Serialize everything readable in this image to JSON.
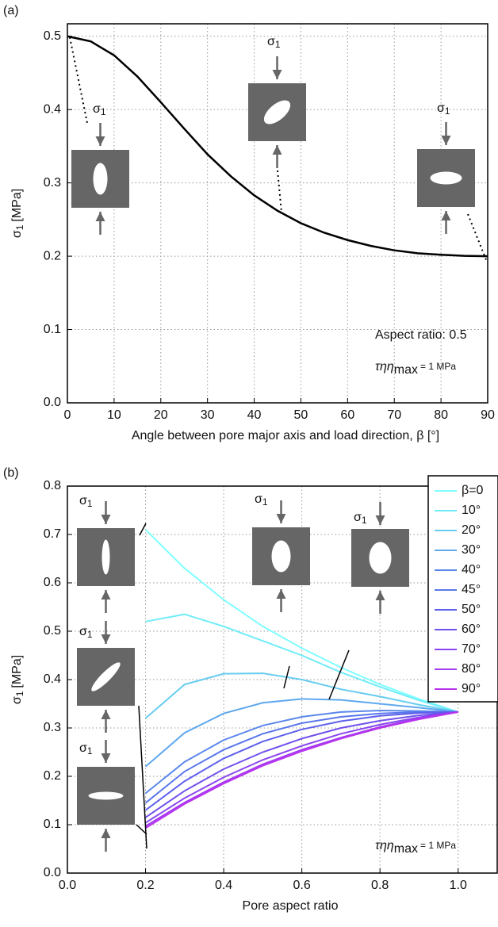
{
  "chart_data": [
    {
      "type": "line",
      "panel_label": "(a)",
      "xlabel": "Angle between pore major axis and load direction, β [°]",
      "ylabel": {
        "symbol": "σ",
        "sub": "1",
        "unit": "[MPa]"
      },
      "xlim": [
        0,
        90
      ],
      "ylim": [
        0,
        0.517
      ],
      "xticks": [
        0,
        10,
        20,
        30,
        40,
        50,
        60,
        70,
        80,
        90
      ],
      "yticks": [
        {
          "value": 0,
          "label": "0.0"
        },
        0.1,
        0.2,
        0.3,
        0.4,
        0.5
      ],
      "grid": true,
      "x": [
        0,
        5,
        10,
        15,
        20,
        25,
        30,
        35,
        40,
        45,
        50,
        55,
        60,
        65,
        70,
        75,
        80,
        85,
        90
      ],
      "values": [
        0.5,
        0.493,
        0.474,
        0.445,
        0.41,
        0.374,
        0.339,
        0.309,
        0.283,
        0.262,
        0.245,
        0.232,
        0.222,
        0.214,
        0.208,
        0.204,
        0.202,
        0.2005,
        0.2
      ],
      "color": "#000000",
      "inset_label": {
        "symbol": "σ",
        "sub": "1"
      },
      "annotations": [
        {
          "text": "Aspect ratio: 0.5"
        },
        {
          "text": "τηη",
          "sub": "max",
          "rest": "= 1 MPa"
        }
      ]
    },
    {
      "type": "line",
      "panel_label": "(b)",
      "xlabel": "Pore aspect ratio",
      "ylabel": {
        "symbol": "σ",
        "sub": "1",
        "unit": "[MPa]"
      },
      "xlim": [
        0,
        1.1
      ],
      "ylim": [
        0,
        0.8
      ],
      "xticks": [
        {
          "value": 0,
          "label": "0.0"
        },
        0.2,
        0.4,
        0.6,
        0.8,
        {
          "value": 1,
          "label": "1.0"
        }
      ],
      "yticks": [
        {
          "value": 0,
          "label": "0.0"
        },
        0.1,
        0.2,
        0.3,
        0.4,
        0.5,
        0.6,
        0.7,
        0.8
      ],
      "grid": true,
      "legend": "upper right",
      "x": [
        0.2,
        0.3,
        0.4,
        0.5,
        0.6,
        0.7,
        0.8,
        0.9,
        1.0
      ],
      "series": [
        {
          "name": "β=0",
          "color": "#7fffff",
          "values": [
            0.71,
            0.63,
            0.565,
            0.51,
            0.465,
            0.425,
            0.39,
            0.36,
            0.333
          ]
        },
        {
          "name": "10°",
          "color": "#70ecf8",
          "values": [
            0.52,
            0.535,
            0.51,
            0.48,
            0.45,
            0.415,
            0.385,
            0.357,
            0.333
          ]
        },
        {
          "name": "20°",
          "color": "#66ccf0",
          "values": [
            0.32,
            0.39,
            0.412,
            0.413,
            0.4,
            0.38,
            0.365,
            0.348,
            0.333
          ]
        },
        {
          "name": "30°",
          "color": "#5ea8ee",
          "values": [
            0.22,
            0.29,
            0.33,
            0.352,
            0.36,
            0.358,
            0.35,
            0.342,
            0.333
          ]
        },
        {
          "name": "40°",
          "color": "#5a88ec",
          "values": [
            0.165,
            0.23,
            0.275,
            0.305,
            0.323,
            0.333,
            0.336,
            0.335,
            0.333
          ]
        },
        {
          "name": "45°",
          "color": "#5a77ec",
          "values": [
            0.145,
            0.21,
            0.255,
            0.288,
            0.31,
            0.323,
            0.33,
            0.333,
            0.333
          ]
        },
        {
          "name": "50°",
          "color": "#5e60ec",
          "values": [
            0.13,
            0.19,
            0.237,
            0.272,
            0.297,
            0.314,
            0.325,
            0.331,
            0.333
          ]
        },
        {
          "name": "60°",
          "color": "#7050ec",
          "values": [
            0.115,
            0.17,
            0.215,
            0.25,
            0.278,
            0.3,
            0.315,
            0.326,
            0.333
          ]
        },
        {
          "name": "70°",
          "color": "#8a45ee",
          "values": [
            0.104,
            0.155,
            0.198,
            0.234,
            0.263,
            0.288,
            0.307,
            0.322,
            0.333
          ]
        },
        {
          "name": "80°",
          "color": "#a23cee",
          "values": [
            0.097,
            0.146,
            0.188,
            0.225,
            0.255,
            0.28,
            0.302,
            0.32,
            0.333
          ]
        },
        {
          "name": "90°",
          "color": "#b833ee",
          "values": [
            0.093,
            0.143,
            0.185,
            0.222,
            0.252,
            0.278,
            0.3,
            0.318,
            0.333
          ]
        }
      ],
      "inset_label": {
        "symbol": "σ",
        "sub": "1"
      },
      "annotations": [
        {
          "text": "τηη",
          "sub": "max",
          "rest": "= 1 MPa"
        }
      ]
    }
  ]
}
